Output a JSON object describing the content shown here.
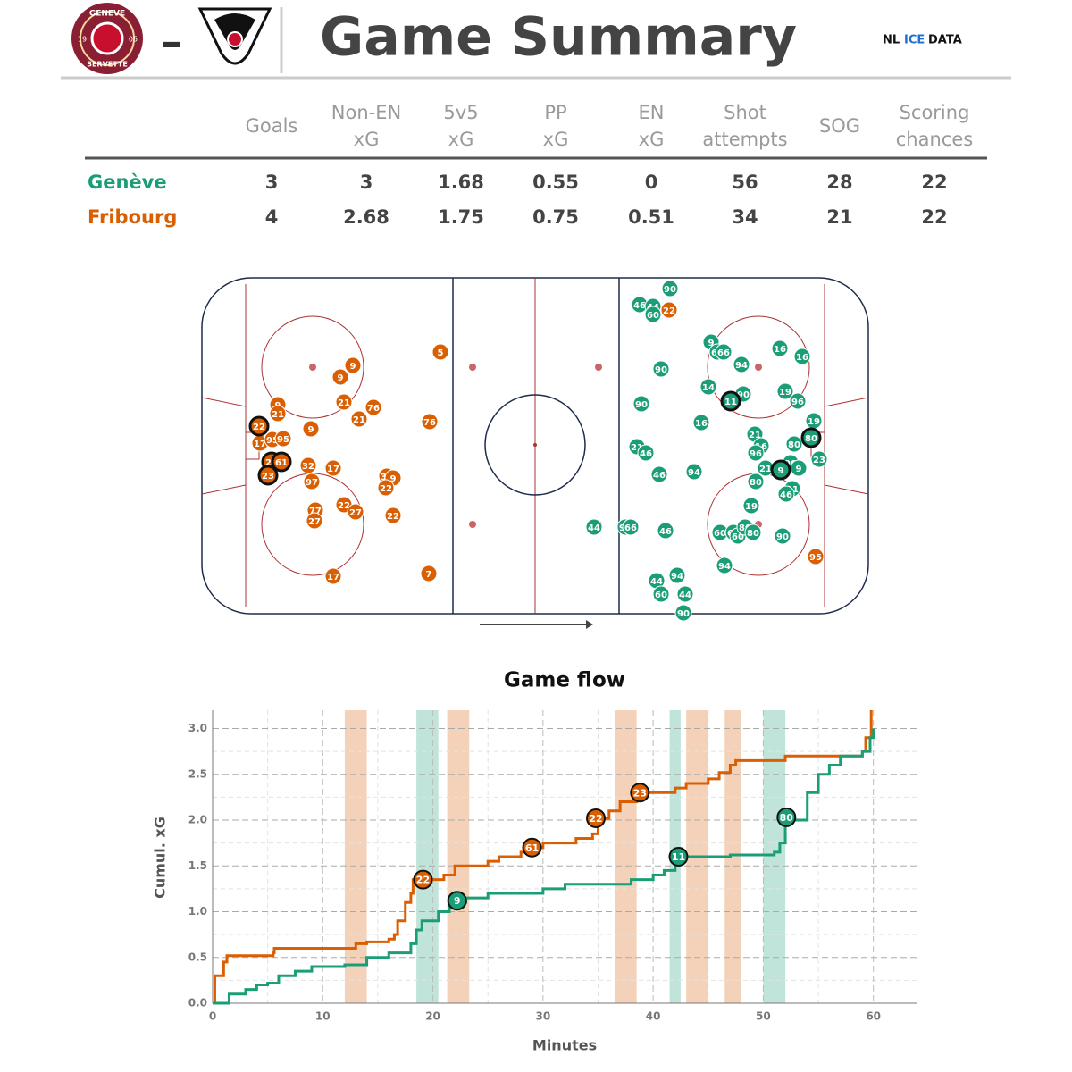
{
  "header": {
    "title": "Game Summary",
    "separator": "–",
    "home_logo": {
      "top": "GENEVE",
      "bottom": "SERVETTE",
      "left": "19",
      "right": "05"
    },
    "brand": [
      "NL",
      "ICE",
      "DATA"
    ]
  },
  "table": {
    "columns": [
      [
        "Goals"
      ],
      [
        "Non-EN",
        "xG"
      ],
      [
        "5v5",
        "xG"
      ],
      [
        "PP",
        "xG"
      ],
      [
        "EN",
        "xG"
      ],
      [
        "Shot",
        "attempts"
      ],
      [
        "SOG"
      ],
      [
        "Scoring",
        "chances"
      ]
    ],
    "rows": [
      {
        "team": "Genève",
        "color": "#1b9e77",
        "values": [
          3,
          3,
          1.68,
          0.55,
          0,
          56,
          28,
          22
        ]
      },
      {
        "team": "Fribourg",
        "color": "#d95f02",
        "values": [
          4,
          2.68,
          1.75,
          0.75,
          0.51,
          34,
          21,
          22
        ]
      }
    ]
  },
  "chart_data": [
    {
      "type": "scatter",
      "xlim": [
        0,
        746
      ],
      "ylim": [
        0,
        376
      ],
      "series": [
        {
          "color": "#d95f02",
          "x": [
            267,
            169,
            155,
            159,
            192,
            176,
            85,
            85,
            255,
            122,
            64,
            65,
            79,
            91,
            78,
            89,
            74,
            119,
            147,
            207,
            214,
            123,
            206,
            159,
            172,
            127,
            126,
            214,
            254,
            147,
            523,
            687
          ],
          "y": [
            293,
            278,
            265,
            237,
            231,
            218,
            234,
            224,
            215,
            207,
            210,
            191,
            195,
            196,
            170,
            170,
            155,
            166,
            163,
            154,
            152,
            148,
            141,
            122,
            114,
            116,
            104,
            110,
            45,
            42,
            340,
            64
          ],
          "labels": [
            "5",
            "9",
            "9",
            "21",
            "76",
            "21",
            "9",
            "21",
            "76",
            "9",
            "22",
            "17",
            "95",
            "95",
            "22",
            "61",
            "23",
            "32",
            "17",
            "32",
            "9",
            "97",
            "22",
            "22",
            "27",
            "77",
            "27",
            "22",
            "7",
            "17",
            "22",
            "95"
          ],
          "goal": [
            false,
            false,
            false,
            false,
            false,
            false,
            false,
            false,
            false,
            false,
            true,
            false,
            false,
            false,
            true,
            true,
            true,
            false,
            false,
            false,
            false,
            false,
            false,
            false,
            false,
            false,
            false,
            false,
            false,
            false,
            false,
            false
          ]
        },
        {
          "color": "#1b9e77",
          "x": [
            524,
            490,
            505,
            505,
            514,
            492,
            570,
            577,
            584,
            604,
            647,
            672,
            567,
            592,
            606,
            653,
            667,
            559,
            685,
            682,
            663,
            619,
            626,
            620,
            487,
            497,
            512,
            551,
            691,
            659,
            668,
            631,
            648,
            620,
            661,
            654,
            615,
            439,
            474,
            480,
            519,
            580,
            595,
            600,
            608,
            617,
            650,
            585,
            532,
            509,
            514,
            541,
            539
          ],
          "y": [
            364,
            346,
            344,
            335,
            274,
            235,
            304,
            293,
            293,
            279,
            297,
            288,
            254,
            238,
            246,
            249,
            238,
            214,
            216,
            197,
            190,
            201,
            188,
            180,
            187,
            180,
            156,
            159,
            173,
            169,
            163,
            163,
            161,
            148,
            140,
            134,
            121,
            97,
            97,
            97,
            93,
            91,
            91,
            87,
            97,
            91,
            87,
            54,
            43,
            37,
            22,
            22,
            1
          ],
          "labels": [
            "90",
            "46",
            "44",
            "60",
            "90",
            "90",
            "9",
            "60",
            "66",
            "94",
            "16",
            "16",
            "14",
            "11",
            "90",
            "19",
            "96",
            "16",
            "19",
            "80",
            "80",
            "21",
            "16",
            "96",
            "21",
            "46",
            "46",
            "94",
            "23",
            "90",
            "9",
            "21",
            "9",
            "80",
            "11",
            "46",
            "19",
            "44",
            "96",
            "66",
            "46",
            "60",
            "60",
            "60",
            "80",
            "80",
            "90",
            "94",
            "94",
            "44",
            "60",
            "44",
            "90"
          ],
          "goal": [
            false,
            false,
            false,
            false,
            false,
            false,
            false,
            false,
            false,
            false,
            false,
            false,
            false,
            true,
            false,
            false,
            false,
            false,
            false,
            true,
            false,
            false,
            false,
            false,
            false,
            false,
            false,
            false,
            false,
            false,
            false,
            false,
            true,
            false,
            false,
            false,
            false,
            false,
            false,
            false,
            false,
            false,
            false,
            false,
            false,
            false,
            false,
            false,
            false,
            false,
            false,
            false,
            false
          ]
        }
      ]
    },
    {
      "type": "line",
      "title": "Game flow",
      "x_label": "Minutes",
      "y_label": "Cumul. xG",
      "step": true,
      "grid": true,
      "xlim": [
        0,
        64
      ],
      "ylim": [
        0,
        3.2
      ],
      "xticks": [
        0,
        10,
        20,
        30,
        40,
        50,
        60
      ],
      "yticks": [
        {
          "value": 0,
          "label": "0.0"
        },
        {
          "value": 0.5,
          "label": "0.5"
        },
        {
          "value": 1,
          "label": "1.0"
        },
        {
          "value": 1.5,
          "label": "1.5"
        },
        {
          "value": 2,
          "label": "2.0"
        },
        {
          "value": 2.5,
          "label": "2.5"
        },
        {
          "value": 3,
          "label": "3.0"
        }
      ],
      "series": [
        {
          "color": "#d95f02",
          "x": [
            0,
            0.2,
            1,
            1.3,
            5.5,
            5.6,
            13,
            14,
            16,
            16.5,
            16.8,
            17.5,
            18,
            18.2,
            21,
            22,
            25,
            26,
            28,
            29,
            30,
            33,
            34.5,
            35,
            36,
            37,
            38.5,
            42,
            43,
            45,
            46,
            47,
            47.5,
            52,
            59,
            59.3,
            59.8
          ],
          "values": [
            0,
            0.3,
            0.45,
            0.52,
            0.55,
            0.6,
            0.65,
            0.67,
            0.7,
            0.75,
            0.9,
            1.1,
            1.2,
            1.35,
            1.4,
            1.5,
            1.55,
            1.6,
            1.65,
            1.7,
            1.75,
            1.8,
            1.85,
            2.02,
            2.1,
            2.2,
            2.3,
            2.35,
            2.4,
            2.45,
            2.52,
            2.6,
            2.65,
            2.7,
            2.75,
            2.9,
            3.2
          ],
          "goal_x": [
            19.1,
            29,
            34.8,
            38.8
          ],
          "goal_y": [
            1.35,
            1.7,
            2.02,
            2.3
          ],
          "goal_labels": [
            "22",
            "61",
            "22",
            "23"
          ],
          "power_play": [
            [
              12,
              14
            ],
            [
              21.3,
              23.3
            ],
            [
              36.5,
              38.5
            ],
            [
              43,
              45
            ],
            [
              46.5,
              48
            ]
          ]
        },
        {
          "color": "#1b9e77",
          "x": [
            0,
            1.5,
            3,
            4,
            5,
            6,
            7.5,
            9,
            12,
            14,
            16,
            18,
            18.5,
            19,
            20.5,
            21.5,
            23,
            25,
            30,
            32,
            38,
            40,
            41,
            42,
            47,
            51,
            51.5,
            52,
            54,
            55,
            56,
            57,
            59,
            59.7,
            60
          ],
          "values": [
            0,
            0.1,
            0.15,
            0.2,
            0.22,
            0.3,
            0.35,
            0.4,
            0.42,
            0.5,
            0.55,
            0.65,
            0.8,
            0.9,
            1.0,
            1.1,
            1.15,
            1.2,
            1.25,
            1.3,
            1.35,
            1.4,
            1.45,
            1.6,
            1.62,
            1.65,
            1.75,
            2.0,
            2.3,
            2.5,
            2.6,
            2.7,
            2.75,
            2.9,
            3.0
          ],
          "goal_x": [
            22.2,
            42.3,
            52.1
          ],
          "goal_y": [
            1.12,
            1.6,
            2.03
          ],
          "goal_labels": [
            "9",
            "11",
            "80"
          ],
          "power_play": [
            [
              18.5,
              20.5
            ],
            [
              41.5,
              42.5
            ],
            [
              50,
              52
            ]
          ]
        }
      ]
    }
  ]
}
